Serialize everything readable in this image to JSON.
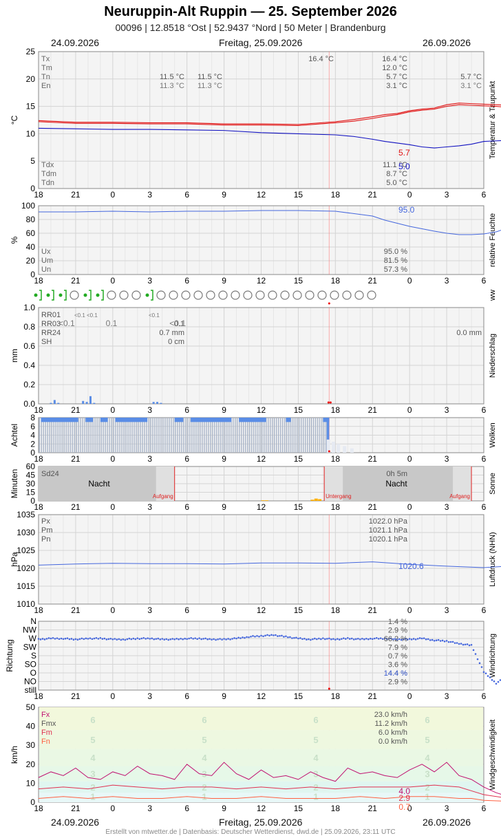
{
  "header": {
    "title": "Neuruppin-Alt Ruppin  —  25. September 2026",
    "subtitle": "00096  |  12.8518 °Ost  |  52.9437 °Nord  |  50 Meter  |  Brandenburg"
  },
  "dates": {
    "left": "24.09.2026",
    "center": "Freitag, 25.09.2026",
    "right": "26.09.2026"
  },
  "footer": "Erstellt von mtwetter.de | Datenbasis: Deutscher Wetterdienst, dwd.de | 25.09.2026, 23:11 UTC",
  "colors": {
    "temp": "#e01010",
    "dew": "#1010c0",
    "blue": "#4466dd",
    "precip": "#5a8de6",
    "now": "#ff6666",
    "sun": "#ffb000",
    "night": "#c8c8c8",
    "gust": "#c01070",
    "mean": "#e03050",
    "min": "#ff6040"
  },
  "chart_data": [
    {
      "type": "line",
      "ylabel": "°C",
      "side_label": "Temperatur & Taupunkt",
      "x_ticks": [
        "18",
        "21",
        "0",
        "3",
        "6",
        "9",
        "12",
        "15",
        "18",
        "21",
        "0",
        "3",
        "6"
      ],
      "ylim": [
        0,
        25
      ],
      "y_ticks": [
        "0",
        "5",
        "10",
        "15",
        "20",
        "25"
      ],
      "stats_top": [
        {
          "label": "Tx",
          "value": "16.4 °C"
        },
        {
          "label": "Tm",
          "value": "12.0 °C"
        },
        {
          "label": "Tn",
          "value": "5.7 °C"
        },
        {
          "label": "En",
          "value": "3.1 °C"
        }
      ],
      "stats_bottom": [
        {
          "label": "Tdx",
          "value": "11.1 °C"
        },
        {
          "label": "Tdm",
          "value": "8.7 °C"
        },
        {
          "label": "Tdn",
          "value": "5.0 °C"
        }
      ],
      "annotations": {
        "tx_peak": "16.4 °C",
        "prev_tn": [
          "11.5 °C",
          "11.5 °C"
        ],
        "prev_en": [
          "11.3 °C",
          "11.3 °C"
        ],
        "next_tn": "5.7 °C",
        "next_en": "3.1 °C",
        "end_temp": "5.7",
        "end_dew": "5.0"
      },
      "series": [
        {
          "name": "Tx",
          "x": [
            0,
            3,
            6,
            9,
            12,
            15,
            18,
            21,
            24,
            25.5,
            27,
            28,
            29,
            30,
            31,
            32,
            33,
            34,
            35,
            36,
            37,
            38,
            39,
            40,
            41,
            42,
            43,
            44,
            45,
            46.5
          ],
          "y": [
            12.4,
            12.1,
            12.1,
            12.0,
            12.0,
            11.8,
            11.8,
            11.7,
            12.2,
            12.6,
            13.1,
            13.5,
            13.7,
            14.2,
            14.5,
            14.7,
            15.3,
            15.6,
            15.5,
            15.4,
            15.3,
            15.2,
            13.0,
            11.0,
            9.5,
            8.3,
            7.6,
            7.3,
            6.8,
            5.7
          ]
        },
        {
          "name": "Tn",
          "x": [
            0,
            3,
            6,
            9,
            12,
            15,
            18,
            21,
            24,
            25.5,
            27,
            28,
            29,
            30,
            31,
            32,
            33,
            34,
            35,
            36,
            37,
            38,
            39,
            40,
            41,
            42,
            43,
            44,
            45,
            46.5
          ],
          "y": [
            12.2,
            11.9,
            11.9,
            11.8,
            11.8,
            11.6,
            11.6,
            11.5,
            12.0,
            12.3,
            12.8,
            13.2,
            13.5,
            14.0,
            14.3,
            14.5,
            15.0,
            15.3,
            15.2,
            15.1,
            15.0,
            14.8,
            12.6,
            10.6,
            9.1,
            8.0,
            7.3,
            7.0,
            6.4,
            5.7
          ]
        },
        {
          "name": "Td",
          "x": [
            0,
            3,
            6,
            9,
            12,
            15,
            18,
            21,
            24,
            25.5,
            27,
            28,
            29,
            30,
            31,
            32,
            33,
            34,
            35,
            36,
            37,
            38,
            39,
            40,
            41,
            42,
            43,
            44,
            45,
            46.5
          ],
          "y": [
            11.0,
            10.9,
            10.8,
            10.8,
            10.7,
            10.6,
            10.2,
            10.0,
            9.8,
            9.5,
            9.0,
            8.6,
            8.3,
            8.0,
            7.6,
            7.4,
            7.6,
            7.8,
            8.1,
            8.6,
            8.7,
            8.8,
            8.5,
            8.1,
            7.5,
            6.8,
            6.4,
            6.1,
            5.4,
            5.0
          ]
        }
      ]
    },
    {
      "type": "line",
      "ylabel": "%",
      "side_label": "relative Feuchte",
      "x_ticks": [
        "18",
        "21",
        "0",
        "3",
        "6",
        "9",
        "12",
        "15",
        "18",
        "21",
        "0",
        "3",
        "6"
      ],
      "ylim": [
        0,
        100
      ],
      "y_ticks": [
        "0",
        "20",
        "40",
        "60",
        "80",
        "100"
      ],
      "stats": [
        {
          "label": "Ux",
          "value": "95.0 %"
        },
        {
          "label": "Um",
          "value": "81.5 %"
        },
        {
          "label": "Un",
          "value": "57.3 %"
        }
      ],
      "end_label": "95.0",
      "series": [
        {
          "name": "rel. Feuchte",
          "x": [
            0,
            3,
            6,
            9,
            12,
            15,
            18,
            21,
            24,
            27,
            28,
            30,
            32,
            33,
            34,
            35,
            36,
            37,
            38,
            39,
            40,
            42,
            44,
            45,
            46.5
          ],
          "y": [
            91,
            91,
            92,
            91,
            92,
            92,
            93,
            93,
            92,
            85,
            79,
            70,
            63,
            60,
            58,
            58,
            59,
            62,
            68,
            77,
            84,
            88,
            91,
            93,
            95
          ]
        }
      ]
    },
    {
      "type": "table",
      "side_label": "ww",
      "symbols": [
        "green-drizzle",
        "green-drizzle",
        "green-drizzle",
        "clear",
        "green-drizzle",
        "green-drizzle",
        "clear",
        "clear",
        "clear",
        "green-drizzle",
        "clear",
        "clear",
        "clear",
        "clear",
        "clear",
        "clear",
        "clear",
        "clear",
        "clear",
        "clear",
        "clear",
        "clear",
        "clear",
        "clear",
        "clear",
        "clear",
        "clear",
        "clear"
      ]
    },
    {
      "type": "bar",
      "ylabel": "mm",
      "side_label": "Niederschlag",
      "x_ticks": [
        "18",
        "21",
        "0",
        "3",
        "6",
        "9",
        "12",
        "15",
        "18",
        "21",
        "0",
        "3",
        "6"
      ],
      "ylim": [
        0,
        1.0
      ],
      "y_ticks": [
        "0.0",
        "0.2",
        "0.4",
        "0.6",
        "0.8",
        "1.0"
      ],
      "stats": [
        {
          "label": "RR01",
          "value": ""
        },
        {
          "label": "RR03",
          "value": "0.1"
        },
        {
          "label": "RR24",
          "value": "0.7 mm"
        },
        {
          "label": "SH",
          "value": "0 cm"
        }
      ],
      "small_labels": [
        "<0.1",
        "<0.1",
        "<0.1",
        "<0.1",
        "<0.1",
        "<0.1"
      ],
      "next_rr24": "0.0 mm",
      "x": [
        1.0,
        1.3,
        1.6,
        3.6,
        3.9,
        4.2,
        4.5,
        9.3,
        9.6,
        9.9
      ],
      "values": [
        0.01,
        0.04,
        0.01,
        0.03,
        0.02,
        0.08,
        0.01,
        0.02,
        0.02,
        0.01
      ]
    },
    {
      "type": "bar",
      "ylabel": "Achtel",
      "side_label": "Wolken",
      "x_ticks": [
        "18",
        "21",
        "0",
        "3",
        "6",
        "9",
        "12",
        "15",
        "18",
        "21",
        "0",
        "3",
        "6"
      ],
      "ylim": [
        0,
        8
      ],
      "y_ticks": [
        "0",
        "2",
        "4",
        "6",
        "8"
      ],
      "low_x_start": 0,
      "high_x_start": 23.3,
      "high_x_end": 29.0,
      "top_blue_segments": [
        [
          0.2,
          3.2
        ],
        [
          3.8,
          4.4
        ],
        [
          5.0,
          5.6
        ],
        [
          6.2,
          8.8
        ],
        [
          11.0,
          11.7
        ],
        [
          12.3,
          15.6
        ],
        [
          16.2,
          18.4
        ],
        [
          20.0,
          20.4
        ],
        [
          23.0,
          23.5
        ]
      ]
    },
    {
      "type": "bar",
      "ylabel": "Minuten",
      "side_label": "Sonne",
      "x_ticks": [
        "18",
        "21",
        "0",
        "3",
        "6",
        "9",
        "12",
        "15",
        "18",
        "21",
        "0",
        "3",
        "6"
      ],
      "ylim": [
        0,
        60
      ],
      "y_ticks": [
        "0",
        "15",
        "30",
        "45",
        "60"
      ],
      "stats": [
        {
          "label": "Sd24",
          "value": "0h 5m"
        }
      ],
      "night_label": "Nacht",
      "sunrise_label": "Aufgang",
      "sunset_label": "Untergang",
      "sunset_x": 23.1,
      "sunrise_x": 11.0,
      "sunrise_next_x": 35.0,
      "night_start_x": 0,
      "x": [
        18.0,
        18.3,
        22.0,
        22.3,
        22.6
      ],
      "values": [
        1,
        1,
        2,
        4,
        3
      ]
    },
    {
      "type": "line",
      "ylabel": "hPa",
      "side_label": "Luftdruck (NHN)",
      "x_ticks": [
        "18",
        "21",
        "0",
        "3",
        "6",
        "9",
        "12",
        "15",
        "18",
        "21",
        "0",
        "3",
        "6"
      ],
      "ylim": [
        1010,
        1035
      ],
      "y_ticks": [
        "1010",
        "1015",
        "1020",
        "1025",
        "1030",
        "1035"
      ],
      "stats": [
        {
          "label": "Px",
          "value": "1022.0 hPa"
        },
        {
          "label": "Pm",
          "value": "1021.1 hPa"
        },
        {
          "label": "Pn",
          "value": "1020.1 hPa"
        }
      ],
      "end_label": "1020.6",
      "series": [
        {
          "name": "Luftdruck",
          "x": [
            0,
            3,
            6,
            9,
            12,
            15,
            18,
            21,
            24,
            27,
            30,
            33,
            36,
            38,
            40,
            42,
            44,
            46.5
          ],
          "y": [
            1020.9,
            1021.2,
            1021.4,
            1021.3,
            1021.3,
            1021.2,
            1021.5,
            1021.5,
            1021.4,
            1021.8,
            1021.1,
            1020.6,
            1020.2,
            1020.6,
            1020.8,
            1020.6,
            1020.5,
            1020.6
          ]
        }
      ]
    },
    {
      "type": "scatter",
      "ylabel": "Richtung",
      "side_label": "Windrichtung",
      "x_ticks": [
        "18",
        "21",
        "0",
        "3",
        "6",
        "9",
        "12",
        "15",
        "18",
        "21",
        "0",
        "3",
        "6"
      ],
      "y_ticks": [
        "N",
        "NW",
        "W",
        "SW",
        "S",
        "SO",
        "O",
        "NO",
        "still"
      ],
      "stats": [
        {
          "label": "N",
          "value": "1.4 %"
        },
        {
          "label": "NW",
          "value": "2.9 %"
        },
        {
          "label": "W",
          "value": "66.2 %"
        },
        {
          "label": "SW",
          "value": "7.9 %"
        },
        {
          "label": "S",
          "value": "0.7 %"
        },
        {
          "label": "SO",
          "value": "3.6 %"
        },
        {
          "label": "O",
          "value": "14.4 %"
        },
        {
          "label": "NO",
          "value": "2.9 %"
        }
      ],
      "end_label": "14.4 %",
      "series": [
        {
          "name": "Richtung",
          "x": [
            0,
            1,
            2,
            3,
            4,
            5,
            6,
            7,
            8,
            9,
            10,
            11,
            12,
            13,
            14,
            15,
            16,
            17,
            18,
            19,
            20,
            21,
            22,
            23,
            24,
            25,
            26,
            27,
            28,
            29,
            30,
            31,
            32,
            33,
            34,
            35,
            36,
            37,
            38,
            39,
            40,
            40.5,
            41,
            41.5,
            42,
            42.5,
            43,
            43.5,
            44,
            44.5,
            45,
            45.5,
            46
          ],
          "y": [
            2.1,
            2.0,
            2.0,
            2.1,
            2.0,
            2.0,
            2.1,
            2.1,
            2.0,
            2.0,
            2.1,
            2.1,
            2.0,
            2.0,
            2.1,
            2.1,
            2.0,
            1.8,
            1.7,
            1.6,
            1.8,
            2.0,
            2.1,
            2.0,
            2.1,
            2.0,
            2.1,
            2.0,
            2.0,
            2.1,
            2.1,
            2.0,
            2.2,
            2.3,
            2.6,
            2.8,
            5.9,
            7.2,
            6.3,
            5.9,
            5.9,
            6.0,
            5.8,
            5.6,
            5.9,
            6.1,
            6.0,
            6.2,
            6.5,
            7.5,
            6.2,
            5.9,
            6.5
          ]
        }
      ]
    },
    {
      "type": "line",
      "ylabel": "km/h",
      "side_label": "Windgeschwindigkeit",
      "x_ticks": [
        "18",
        "21",
        "0",
        "3",
        "6",
        "9",
        "12",
        "15",
        "18",
        "21",
        "0",
        "3",
        "6"
      ],
      "ylim": [
        0,
        50
      ],
      "y_ticks": [
        "0",
        "10",
        "20",
        "30",
        "40",
        "50"
      ],
      "beaufort": [
        "1",
        "2",
        "3",
        "4",
        "5",
        "6"
      ],
      "stats": [
        {
          "label": "Fx",
          "value": "23.0 km/h"
        },
        {
          "label": "Fmx",
          "value": "11.2 km/h"
        },
        {
          "label": "Fm",
          "value": "6.0 km/h"
        },
        {
          "label": "Fn",
          "value": "0.0 km/h"
        }
      ],
      "end_labels": [
        "4.0",
        "2.9",
        "0.7"
      ],
      "series": [
        {
          "name": "Fx",
          "x": [
            0,
            1,
            2,
            3,
            4,
            5,
            6,
            7,
            8,
            9,
            10,
            11,
            12,
            13,
            14,
            15,
            16,
            17,
            18,
            19,
            20,
            21,
            22,
            23,
            24,
            25,
            26,
            27,
            28,
            29,
            30,
            31,
            32,
            33,
            34,
            35,
            36,
            37,
            38,
            39,
            40,
            41,
            42,
            43,
            44,
            45,
            46.5
          ],
          "y": [
            13,
            16,
            14,
            18,
            13,
            12,
            16,
            14,
            19,
            15,
            14,
            12,
            20,
            15,
            14,
            21,
            15,
            12,
            17,
            13,
            14,
            12,
            16,
            13,
            11,
            18,
            15,
            16,
            14,
            13,
            17,
            20,
            16,
            21,
            14,
            12,
            8,
            5,
            3,
            2,
            1,
            2,
            3,
            2,
            2,
            3,
            4
          ]
        },
        {
          "name": "Fm",
          "x": [
            0,
            2,
            4,
            6,
            8,
            10,
            12,
            14,
            16,
            18,
            20,
            22,
            24,
            26,
            28,
            30,
            32,
            34,
            35,
            36,
            38,
            40,
            42,
            44,
            46.5
          ],
          "y": [
            7,
            8,
            7,
            9,
            8,
            7,
            8,
            8,
            7,
            8,
            7,
            8,
            7,
            8,
            8,
            8,
            9,
            8,
            6,
            4,
            2,
            1,
            2,
            2,
            3
          ]
        },
        {
          "name": "Fn",
          "x": [
            0,
            2,
            4,
            6,
            8,
            10,
            12,
            14,
            16,
            18,
            20,
            22,
            24,
            26,
            28,
            30,
            32,
            34,
            35,
            36,
            38,
            40,
            42,
            44,
            46.5
          ],
          "y": [
            2,
            3,
            2,
            3,
            2,
            2,
            3,
            2,
            2,
            3,
            2,
            2,
            2,
            3,
            2,
            3,
            3,
            2,
            2,
            1,
            0.5,
            0.3,
            0.5,
            0.5,
            0.7
          ]
        }
      ]
    }
  ]
}
